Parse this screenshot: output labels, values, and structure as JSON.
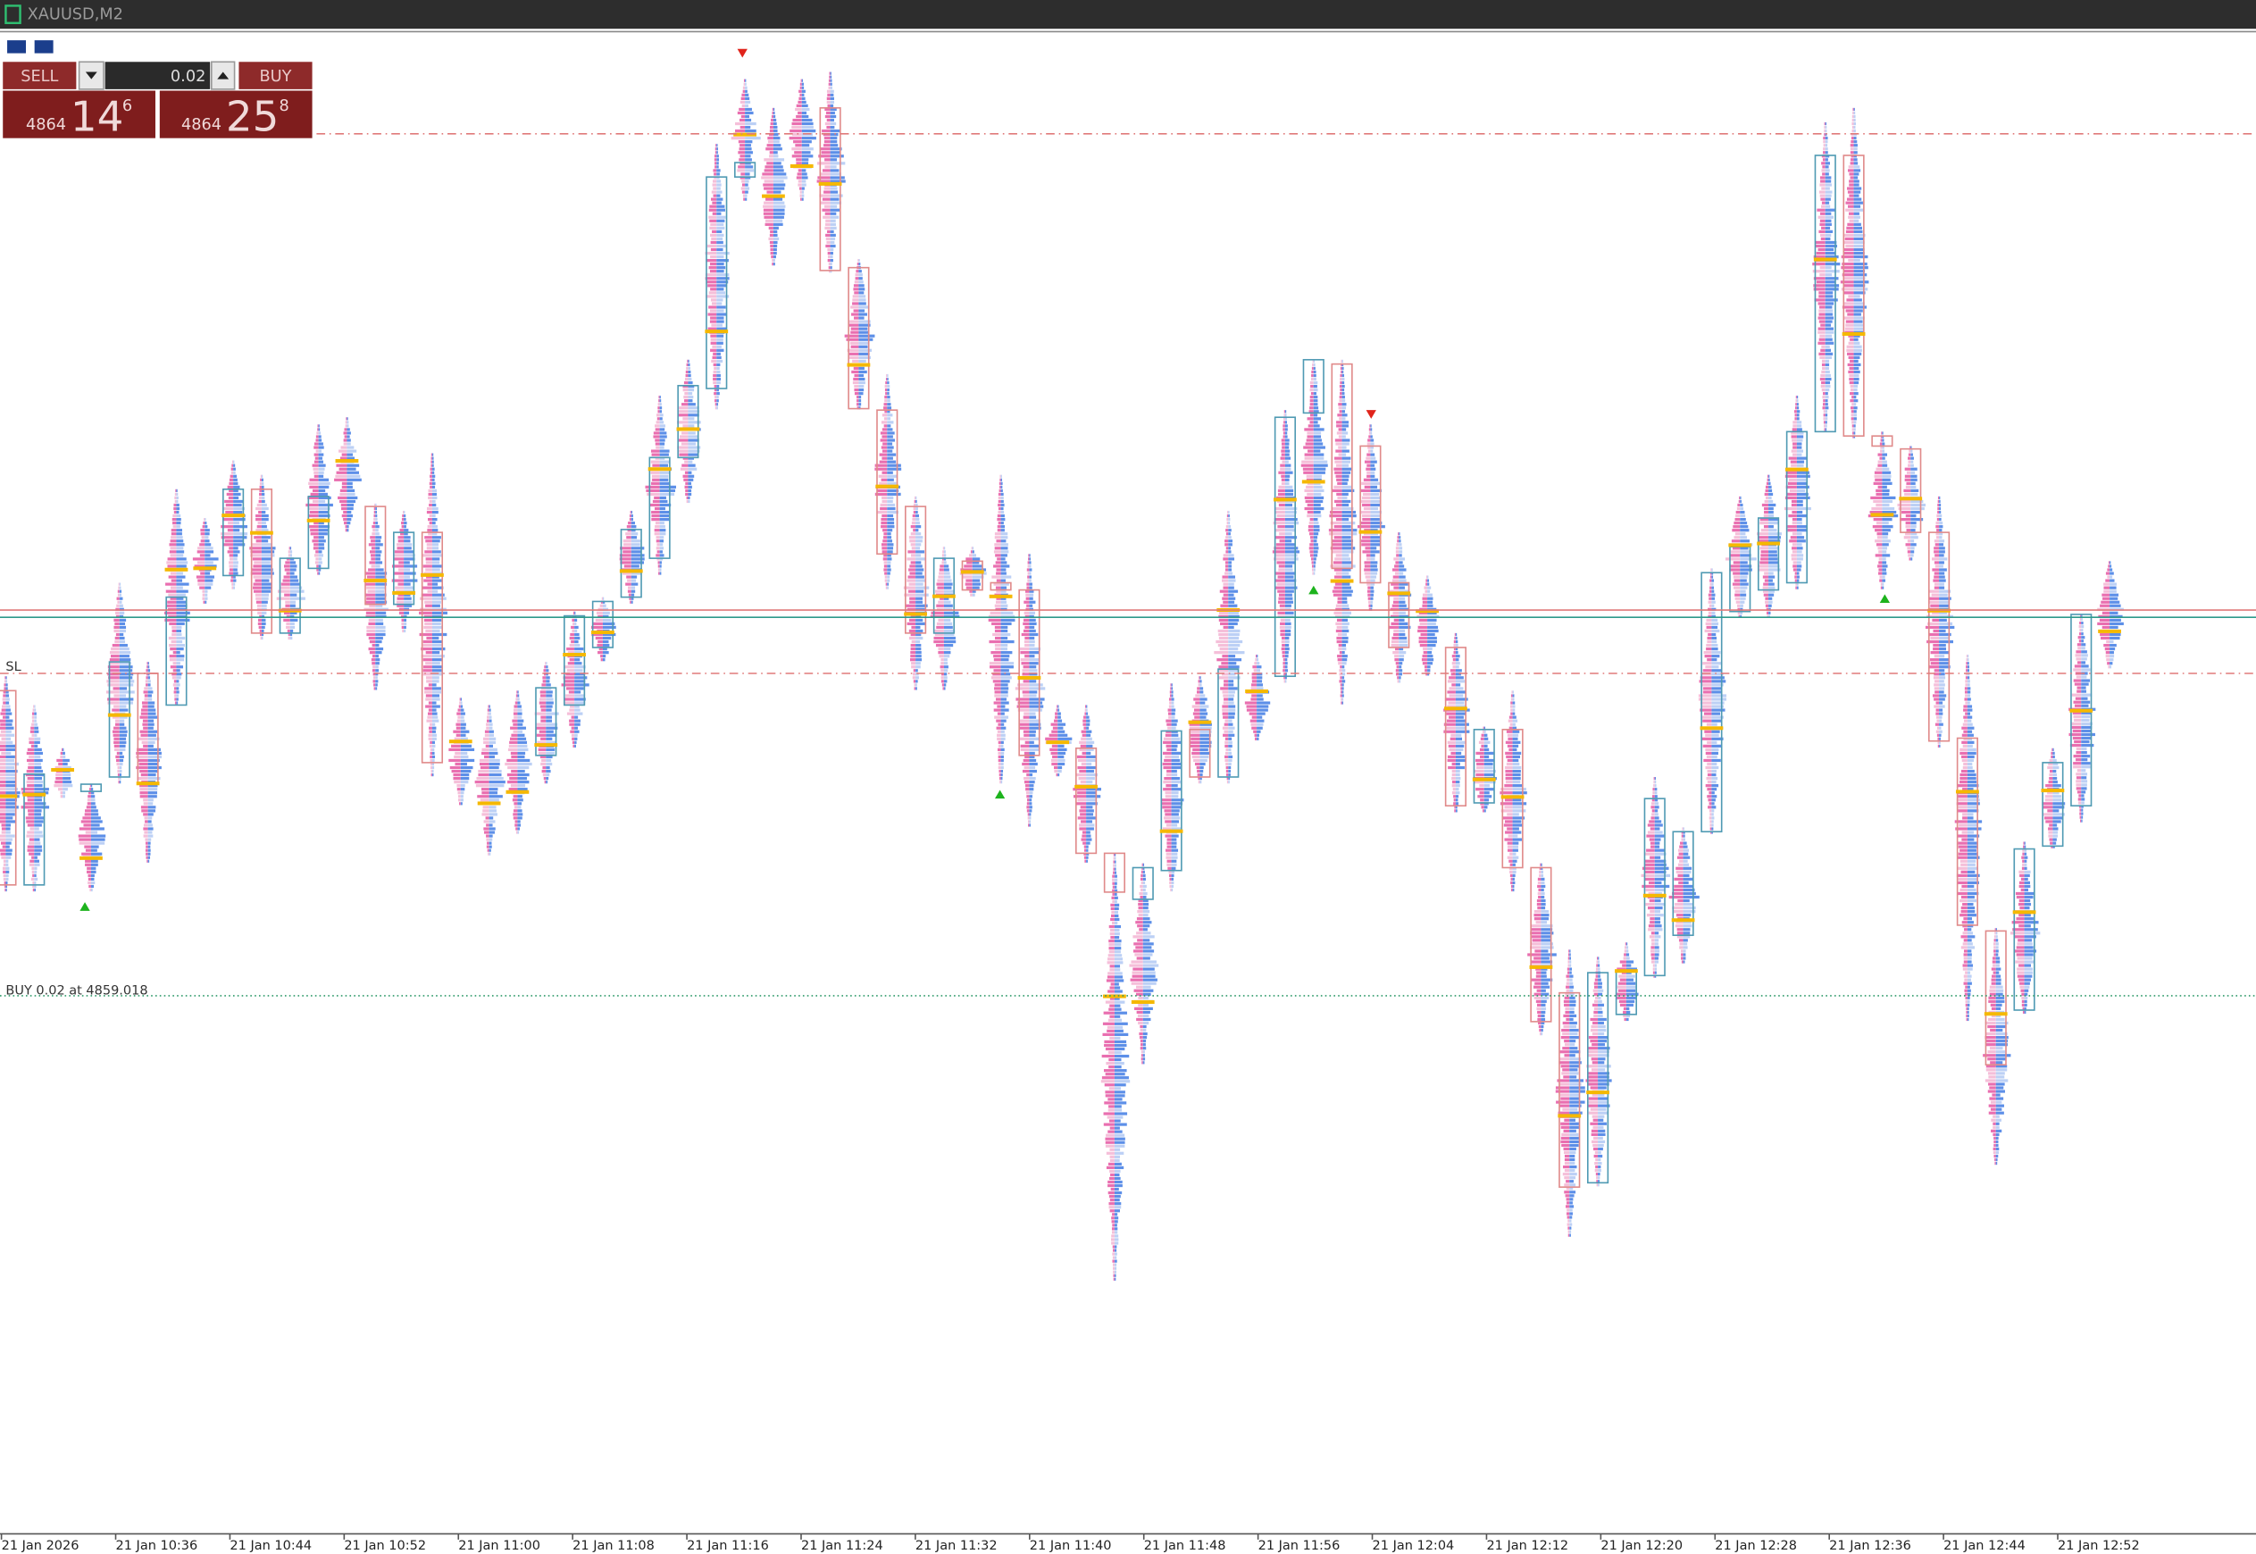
{
  "window": {
    "title": "XAUUSD,M2"
  },
  "trade_panel": {
    "sell_label": "SELL",
    "buy_label": "BUY",
    "volume": "0.02",
    "sell_price": {
      "big_figure": "4864",
      "pips": "14",
      "fraction": "6"
    },
    "buy_price": {
      "big_figure": "4864",
      "pips": "25",
      "fraction": "8"
    }
  },
  "chart": {
    "labels": {
      "stop_loss": "SL",
      "position": "BUY 0.02 at 4859.018"
    },
    "time_axis": [
      "21 Jan 2026",
      "21 Jan 10:36",
      "21 Jan 10:44",
      "21 Jan 10:52",
      "21 Jan 11:00",
      "21 Jan 11:08",
      "21 Jan 11:16",
      "21 Jan 11:24",
      "21 Jan 11:32",
      "21 Jan 11:40",
      "21 Jan 11:48",
      "21 Jan 11:56",
      "21 Jan 12:04",
      "21 Jan 12:12",
      "21 Jan 12:20",
      "21 Jan 12:28",
      "21 Jan 12:36",
      "21 Jan 12:44",
      "21 Jan 12:52"
    ]
  }
}
